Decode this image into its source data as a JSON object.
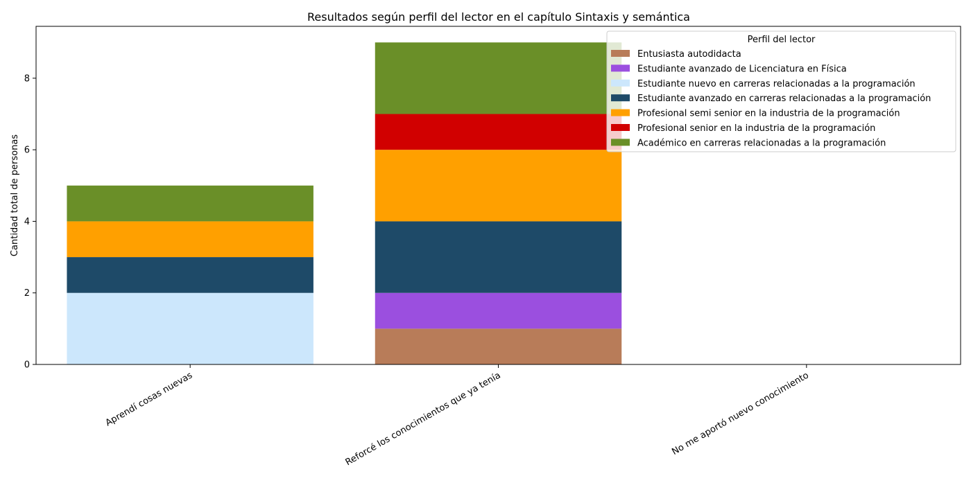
{
  "chart_data": {
    "type": "bar",
    "stacked": true,
    "title": "Resultados según perfil del lector en el capítulo Sintaxis y semántica",
    "xlabel": "",
    "ylabel": "Cantidad total de personas",
    "categories": [
      "Aprendí cosas nuevas",
      "Reforcé los conocimientos que ya tenía",
      "No me aportó nuevo conocimiento"
    ],
    "ylim": [
      0,
      9.45
    ],
    "yticks": [
      0,
      2,
      4,
      6,
      8
    ],
    "grid": false,
    "legend": {
      "title": "Perfil del lector",
      "placement": "top-right"
    },
    "series": [
      {
        "name": "Entusiasta autodidacta",
        "color": "#b87c59",
        "values": [
          0,
          1,
          0
        ]
      },
      {
        "name": "Estudiante avanzado de Licenciatura en Física",
        "color": "#9b4fdf",
        "values": [
          0,
          1,
          0
        ]
      },
      {
        "name": "Estudiante nuevo en carreras relacionadas a la programación",
        "color": "#cce7fc",
        "values": [
          2,
          0,
          0
        ]
      },
      {
        "name": "Estudiante avanzado en carreras relacionadas a la programación",
        "color": "#1e4a68",
        "values": [
          1,
          2,
          0
        ]
      },
      {
        "name": "Profesional semi senior en la industria de la programación",
        "color": "#ffa000",
        "values": [
          1,
          2,
          0
        ]
      },
      {
        "name": "Profesional senior en la industria de la programación",
        "color": "#d10000",
        "values": [
          0,
          1,
          0
        ]
      },
      {
        "name": "Académico en carreras relacionadas a la programación",
        "color": "#6a8f28",
        "values": [
          1,
          2,
          0
        ]
      }
    ]
  }
}
